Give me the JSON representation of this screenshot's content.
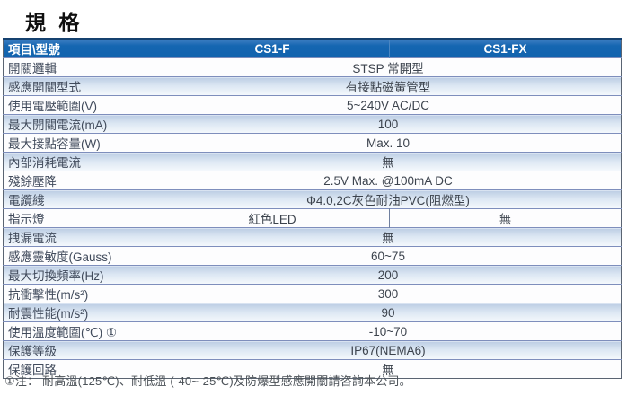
{
  "page": {
    "title": "規 格"
  },
  "table": {
    "header": {
      "item_col": "項目\\型號",
      "model_1": "CS1-F",
      "model_2": "CS1-FX"
    },
    "rows": [
      {
        "label": "開關邏輯",
        "value": "STSP 常開型"
      },
      {
        "label": "感應開關型式",
        "value": "有接點磁簧管型"
      },
      {
        "label": "使用電壓範圍(V)",
        "value": "5~240V AC/DC"
      },
      {
        "label": "最大開關電流(mA)",
        "value": "100"
      },
      {
        "label": "最大接點容量(W)",
        "value": "Max. 10"
      },
      {
        "label": "內部消耗電流",
        "value": "無"
      },
      {
        "label": "殘餘壓降",
        "value": "2.5V Max. @100mA DC"
      },
      {
        "label": "電纜綫",
        "value": "Φ4.0,2C灰色耐油PVC(阻燃型)"
      },
      {
        "label": "指示燈",
        "value_cs1f": "紅色LED",
        "value_cs1fx": "無"
      },
      {
        "label": "拽漏電流",
        "value": "無"
      },
      {
        "label": "感應靈敏度(Gauss)",
        "value": "60~75"
      },
      {
        "label": "最大切換頻率(Hz)",
        "value": "200"
      },
      {
        "label": "抗衝擊性(m/s²)",
        "value": "300"
      },
      {
        "label": "耐震性能(m/s²)",
        "value": "90"
      },
      {
        "label": "使用溫度範圍(℃) ①",
        "value": "-10~70"
      },
      {
        "label": "保護等級",
        "value": "IP67(NEMA6)"
      },
      {
        "label": "保護回路",
        "value": "無"
      }
    ]
  },
  "footnote": "①注： 耐高溫(125℃)、耐低溫 (-40~-25℃)及防爆型感應開關請咨詢本公司。",
  "colors": {
    "header_blue": "#1566b1",
    "stripe_blue": "#bccde4",
    "row_border": "#7e8ebc",
    "outer_border": "#5a6472"
  }
}
